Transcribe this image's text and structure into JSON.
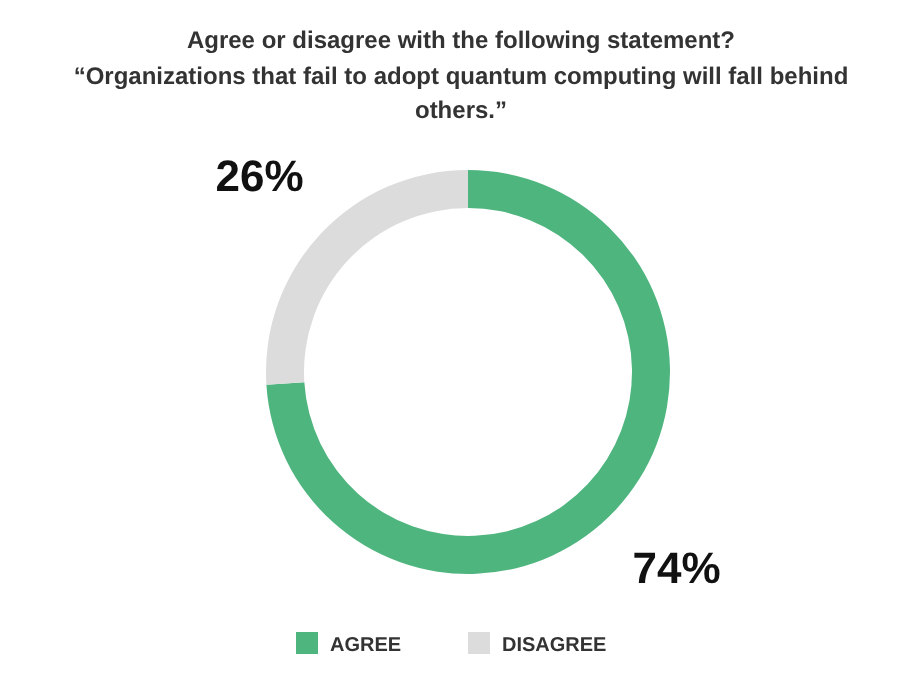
{
  "chart_data": {
    "type": "donut",
    "title": "Agree or disagree with the following statement?",
    "subtitle": "“Organizations that fail to adopt quantum computing will fall behind others.”",
    "categories": [
      "AGREE",
      "DISAGREE"
    ],
    "values": [
      74,
      26
    ],
    "colors": [
      "#4fb57f",
      "#dcdcdc"
    ],
    "value_labels": [
      "74%",
      "26%"
    ],
    "legend": "bottom"
  }
}
